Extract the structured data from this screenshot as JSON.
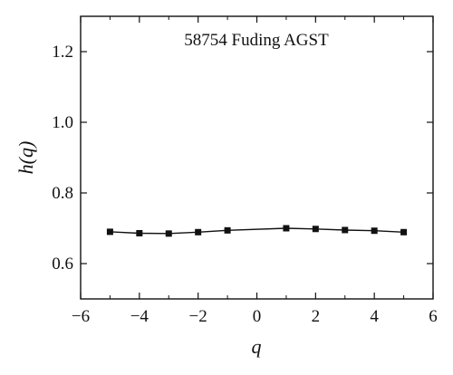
{
  "chart_data": {
    "type": "line",
    "annotation": "58754 Fuding AGST",
    "xlabel": "q",
    "ylabel": "h(q)",
    "xlim": [
      -6,
      6
    ],
    "ylim": [
      0.5,
      1.3
    ],
    "x_ticks": [
      -6,
      -4,
      -2,
      0,
      2,
      4,
      6
    ],
    "x_tick_labels": [
      "−6",
      "−4",
      "−2",
      "0",
      "2",
      "4",
      "6"
    ],
    "y_ticks": [
      0.6,
      0.8,
      1.0,
      1.2
    ],
    "y_tick_labels": [
      "0.6",
      "0.8",
      "1.0",
      "1.2"
    ],
    "grid": false,
    "marker": "square",
    "series": [
      {
        "x": [
          -5,
          -4,
          -3,
          -2,
          -1,
          1,
          2,
          3,
          4,
          5
        ],
        "y": [
          0.69,
          0.686,
          0.685,
          0.689,
          0.694,
          0.7,
          0.698,
          0.695,
          0.693,
          0.689
        ]
      }
    ]
  }
}
